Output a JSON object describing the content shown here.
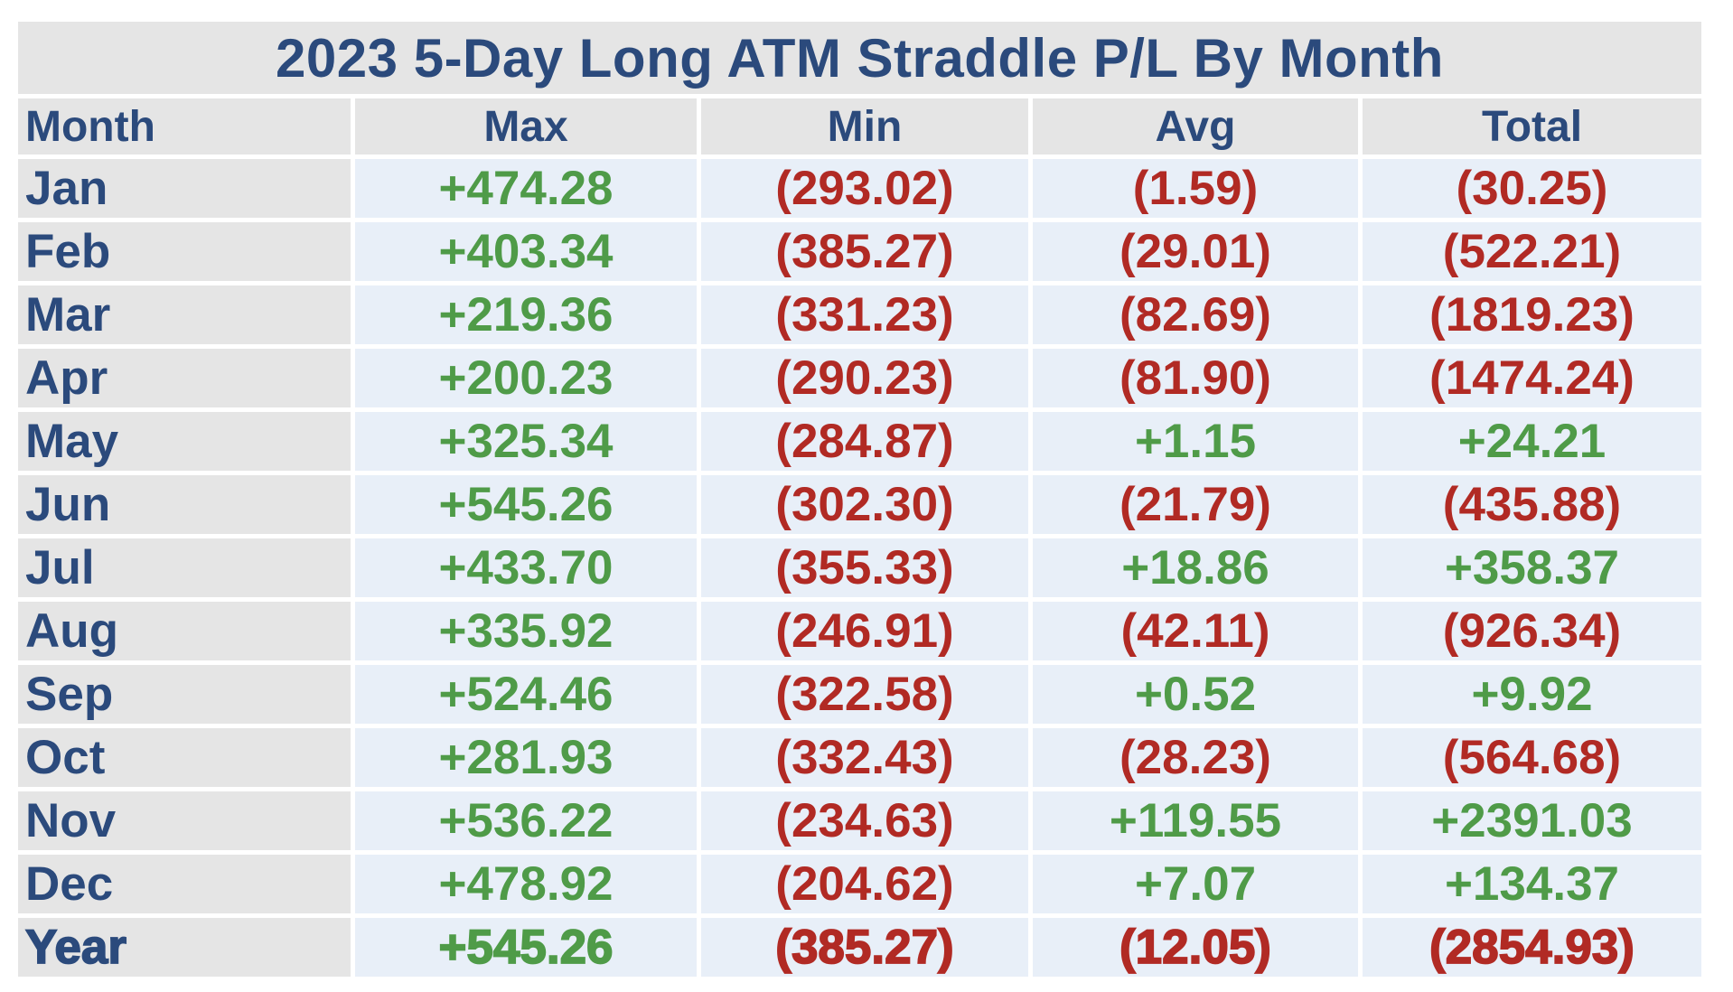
{
  "title": "2023 5-Day Long ATM Straddle P/L By Month",
  "columns": [
    "Month",
    "Max",
    "Min",
    "Avg",
    "Total"
  ],
  "colors": {
    "title_text": "#2b4a7c",
    "positive": "#4f9b48",
    "negative": "#b12a24",
    "label_cell_bg": "#e5e5e5",
    "value_cell_bg": "#e8eff8",
    "page_bg": "#ffffff"
  },
  "chart_data": {
    "type": "table",
    "title": "2023 5-Day Long ATM Straddle P/L By Month",
    "columns": [
      "Month",
      "Max",
      "Min",
      "Avg",
      "Total"
    ],
    "value_format": "positive prefixed with +, negative shown in parentheses, 2 decimals",
    "rows": [
      {
        "label": "Jan",
        "max": 474.28,
        "min": -293.02,
        "avg": -1.59,
        "total": -30.25
      },
      {
        "label": "Feb",
        "max": 403.34,
        "min": -385.27,
        "avg": -29.01,
        "total": -522.21
      },
      {
        "label": "Mar",
        "max": 219.36,
        "min": -331.23,
        "avg": -82.69,
        "total": -1819.23
      },
      {
        "label": "Apr",
        "max": 200.23,
        "min": -290.23,
        "avg": -81.9,
        "total": -1474.24
      },
      {
        "label": "May",
        "max": 325.34,
        "min": -284.87,
        "avg": 1.15,
        "total": 24.21
      },
      {
        "label": "Jun",
        "max": 545.26,
        "min": -302.3,
        "avg": -21.79,
        "total": -435.88
      },
      {
        "label": "Jul",
        "max": 433.7,
        "min": -355.33,
        "avg": 18.86,
        "total": 358.37
      },
      {
        "label": "Aug",
        "max": 335.92,
        "min": -246.91,
        "avg": -42.11,
        "total": -926.34
      },
      {
        "label": "Sep",
        "max": 524.46,
        "min": -322.58,
        "avg": 0.52,
        "total": 9.92
      },
      {
        "label": "Oct",
        "max": 281.93,
        "min": -332.43,
        "avg": -28.23,
        "total": -564.68
      },
      {
        "label": "Nov",
        "max": 536.22,
        "min": -234.63,
        "avg": 119.55,
        "total": 2391.03
      },
      {
        "label": "Dec",
        "max": 478.92,
        "min": -204.62,
        "avg": 7.07,
        "total": 134.37
      },
      {
        "label": "Year",
        "max": 545.26,
        "min": -385.27,
        "avg": -12.05,
        "total": -2854.93,
        "emphasis": true
      }
    ]
  }
}
